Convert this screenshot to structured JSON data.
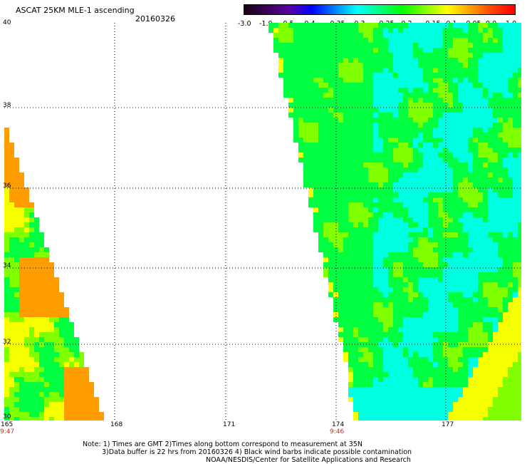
{
  "header": {
    "title": "ASCAT 25KM MLE-1 ascending",
    "date": "20160326"
  },
  "colorbar": {
    "ticks": [
      "-3.0",
      "-1.0",
      "-0.5",
      "-0.4",
      "-0.35",
      "-0.3",
      "-0.25",
      "-0.2",
      "-0.15",
      "-0.1",
      "-0.05",
      "0.0",
      "1.0"
    ],
    "colors": [
      "#1a0010",
      "#3b0057",
      "#5a00a5",
      "#0000ff",
      "#0080ff",
      "#00ffff",
      "#00ff80",
      "#00ff00",
      "#80ff00",
      "#ffff00",
      "#ffa000",
      "#ff4000",
      "#ff0000"
    ]
  },
  "map": {
    "lat_labels": [
      "40",
      "38",
      "36",
      "34",
      "32",
      "30"
    ],
    "lon_labels": [
      "165",
      "168",
      "171",
      "174",
      "177"
    ],
    "time_labels": [
      "9:47",
      "9:46"
    ],
    "grid_style": "dotted",
    "palette": {
      "cyan": "#00ffe0",
      "green": "#00ff40",
      "lime": "#7fff00",
      "yellow": "#f5ff00",
      "orange": "#ff9d00"
    }
  },
  "footer": {
    "line1": "Note: 1) Times are GMT 2)Times along bottom correspond to measurement at 35N",
    "line2": "3)Data buffer is 22 hrs from 20160326 4) Black wind barbs indicate possible contamination",
    "line3": "NOAA/NESDIS/Center for Satellite Applications and Research"
  }
}
